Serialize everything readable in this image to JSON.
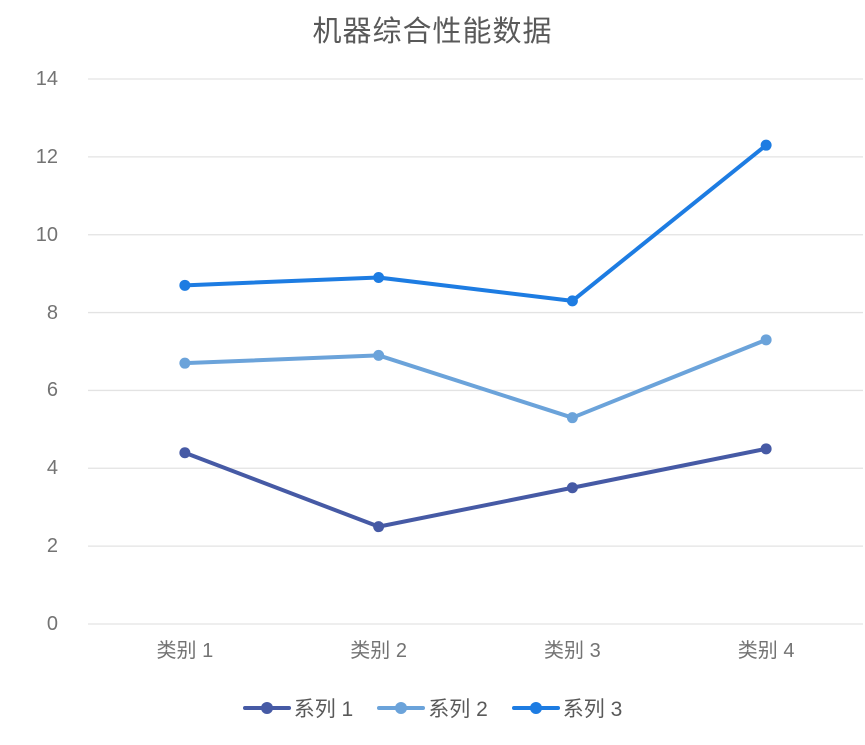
{
  "chart_data": {
    "type": "line",
    "title": "机器综合性能数据",
    "categories": [
      "类别 1",
      "类别 2",
      "类别 3",
      "类别 4"
    ],
    "series": [
      {
        "name": "系列 1",
        "color": "#465AA5",
        "values": [
          4.4,
          2.5,
          3.5,
          4.5
        ]
      },
      {
        "name": "系列 2",
        "color": "#6BA3DA",
        "values": [
          6.7,
          6.9,
          5.3,
          7.3
        ]
      },
      {
        "name": "系列 3",
        "color": "#1D7CE2",
        "values": [
          8.7,
          8.9,
          8.3,
          12.3
        ]
      }
    ],
    "xlabel": "",
    "ylabel": "",
    "ylim": [
      0,
      14
    ],
    "yticks": [
      0,
      2,
      4,
      6,
      8,
      10,
      12,
      14
    ],
    "grid": true,
    "legend_position": "bottom",
    "grid_color": "#e3e3e3",
    "title_color": "#595959",
    "axis_label_color": "#737373",
    "legend_text_color": "#595959"
  }
}
